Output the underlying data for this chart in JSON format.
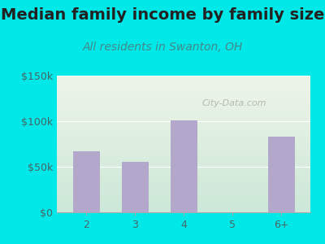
{
  "title": "Median family income by family size",
  "subtitle": "All residents in Swanton, OH",
  "categories": [
    "2",
    "3",
    "4",
    "5",
    "6+"
  ],
  "values": [
    67000,
    55000,
    101000,
    0,
    83000
  ],
  "bar_color": "#b3a8cc",
  "background_outer": "#00e8e8",
  "ylim": [
    0,
    150000
  ],
  "yticks": [
    0,
    50000,
    100000,
    150000
  ],
  "ytick_labels": [
    "$0",
    "$50k",
    "$100k",
    "$150k"
  ],
  "title_fontsize": 14,
  "subtitle_fontsize": 10,
  "tick_fontsize": 9,
  "watermark": "City-Data.com",
  "plot_bg_colors": [
    "#cce8d8",
    "#eef5e8"
  ],
  "title_color": "#222222",
  "subtitle_color": "#448888",
  "tick_color": "#446666"
}
